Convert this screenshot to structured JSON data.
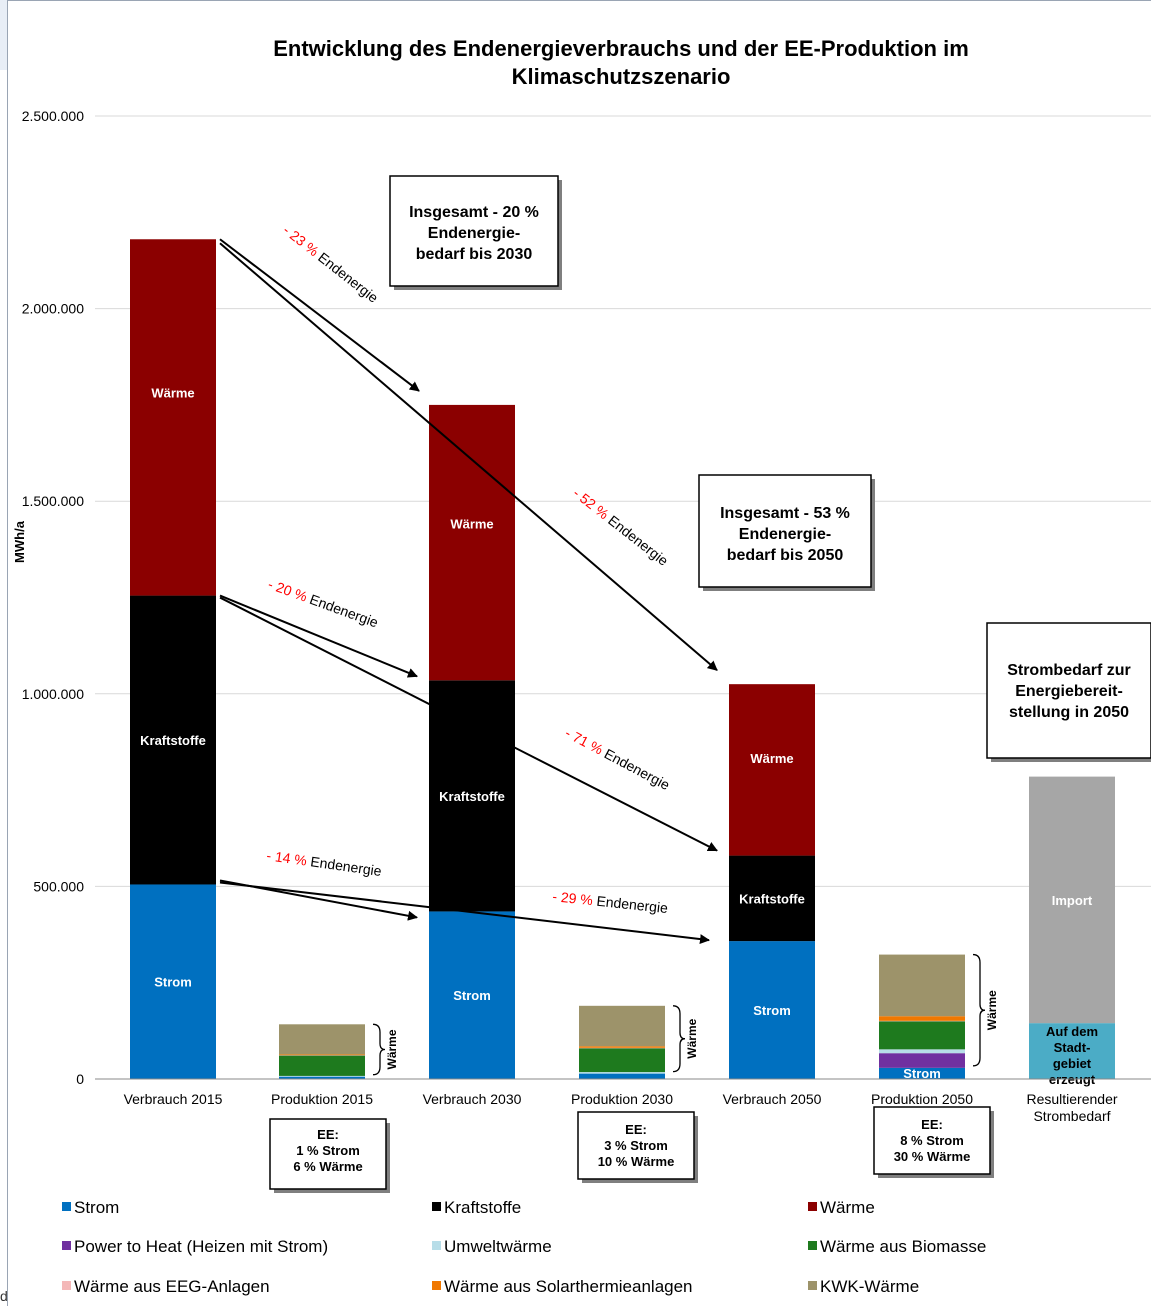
{
  "chart_data": {
    "type": "bar",
    "title": "Entwicklung des Endenergieverbrauchs und der EE-Produktion im Klimaschutzszenario",
    "title_lines": [
      "Entwicklung des Endenergieverbrauchs und der EE-Produktion im",
      "Klimaschutzszenario"
    ],
    "ylabel": "MWh/a",
    "xlabel": "",
    "ylim": [
      0,
      2500000
    ],
    "yticks": [
      0,
      500000,
      1000000,
      1500000,
      2000000,
      2500000
    ],
    "ytick_labels": [
      "0",
      "500.000",
      "1.000.000",
      "1.500.000",
      "2.000.000",
      "2.500.000"
    ],
    "grid": true,
    "stacked": true,
    "categories": [
      "Verbrauch 2015",
      "Produktion 2015",
      "Verbrauch 2030",
      "Produktion 2030",
      "Verbrauch 2050",
      "Produktion 2050",
      "Resultierender Strombedarf"
    ],
    "category_lines": [
      [
        "Verbrauch 2015"
      ],
      [
        "Produktion 2015"
      ],
      [
        "Verbrauch 2030"
      ],
      [
        "Produktion 2030"
      ],
      [
        "Verbrauch 2050"
      ],
      [
        "Produktion 2050"
      ],
      [
        "Resultierender",
        "Strombedarf"
      ]
    ],
    "series": [
      {
        "name": "Strom",
        "color": "#0070c0",
        "values": [
          505000,
          0,
          435000,
          0,
          358000,
          0,
          0
        ]
      },
      {
        "name": "Kraftstoffe",
        "color": "#000000",
        "values": [
          750000,
          0,
          600000,
          0,
          222000,
          0,
          0
        ]
      },
      {
        "name": "Wärme",
        "color": "#8b0000",
        "values": [
          925000,
          0,
          715000,
          0,
          445000,
          0,
          0
        ]
      },
      {
        "name": "Power to Heat (Heizen mit Strom)",
        "color": "#7030a0",
        "values": [
          0,
          0,
          0,
          0,
          0,
          38000,
          0
        ]
      },
      {
        "name": "Umweltwärme",
        "color": "#b7dde8",
        "values": [
          0,
          2000,
          0,
          4000,
          0,
          10000,
          0
        ]
      },
      {
        "name": "Wärme aus Biomasse",
        "color": "#1e7a1e",
        "values": [
          0,
          53000,
          0,
          62000,
          0,
          73000,
          0
        ]
      },
      {
        "name": "Wärme aus EEG-Anlagen",
        "color": "#f4b8b8",
        "values": [
          0,
          1000,
          0,
          1000,
          0,
          1000,
          0
        ]
      },
      {
        "name": "Wärme aus Solarthermieanlagen",
        "color": "#f07800",
        "values": [
          0,
          2000,
          0,
          4000,
          0,
          12000,
          0
        ]
      },
      {
        "name": "KWK-Wärme",
        "color": "#9d936a",
        "values": [
          0,
          78000,
          0,
          105000,
          0,
          160000,
          0
        ]
      },
      {
        "name": "Import",
        "color": "#a6a6a6",
        "values": [
          0,
          0,
          0,
          0,
          0,
          0,
          640000
        ]
      }
    ],
    "extra_segments": [
      {
        "category": "Produktion 2015",
        "name": "Strom",
        "color": "#0070c0",
        "value": 6000
      },
      {
        "category": "Produktion 2030",
        "name": "Strom",
        "color": "#0070c0",
        "value": 14000
      },
      {
        "category": "Produktion 2050",
        "name": "Strom",
        "color": "#0070c0",
        "value": 29000
      },
      {
        "category": "Resultierender Strombedarf",
        "name": "Auf dem Stadtgebiet erzeugt",
        "color": "#4bacc6",
        "value": 145000
      }
    ],
    "segment_labels": {
      "strom": "Strom",
      "kraftstoffe": "Kraftstoffe",
      "waerme": "Wärme",
      "import": "Import",
      "stadtgebiet": [
        "Auf dem",
        "Stadt-",
        "gebiet",
        "erzeugt"
      ]
    },
    "brace_label": "Wärme",
    "annotations": {
      "box_2030": [
        "Insgesamt - 20 %",
        "Endenergie-",
        "bedarf bis 2030"
      ],
      "box_2050": [
        "Insgesamt - 53 %",
        "Endenergie-",
        "bedarf bis 2050"
      ],
      "box_strom": [
        "Strombedarf zur",
        "Energiebereit-",
        "stellung in 2050"
      ],
      "ee_2015": [
        "EE:",
        "1 % Strom",
        "6 % Wärme"
      ],
      "ee_2030": [
        "EE:",
        "3 % Strom",
        "10 % Wärme"
      ],
      "ee_2050": [
        "EE:",
        "8 % Strom",
        "30 % Wärme"
      ],
      "arrows": [
        {
          "pct": "- 23 %",
          "text": " Endenergie"
        },
        {
          "pct": "- 52 %",
          "text": " Endenergie"
        },
        {
          "pct": "- 20 %",
          "text": " Endenergie"
        },
        {
          "pct": "- 71 %",
          "text": " Endenergie"
        },
        {
          "pct": "- 14 %",
          "text": " Endenergie"
        },
        {
          "pct": "- 29 %",
          "text": " Endenergie"
        }
      ]
    },
    "legend": {
      "placement": "bottom",
      "items": [
        {
          "label": "Strom",
          "color": "#0070c0"
        },
        {
          "label": "Kraftstoffe",
          "color": "#000000"
        },
        {
          "label": "Wärme",
          "color": "#8b0000"
        },
        {
          "label": "Power to Heat (Heizen mit Strom)",
          "color": "#7030a0"
        },
        {
          "label": "Umweltwärme",
          "color": "#b7dde8"
        },
        {
          "label": "Wärme aus Biomasse",
          "color": "#1e7a1e"
        },
        {
          "label": "Wärme aus EEG-Anlagen",
          "color": "#f4b8b8"
        },
        {
          "label": "Wärme aus Solarthermieanlagen",
          "color": "#f07800"
        },
        {
          "label": "KWK-Wärme",
          "color": "#9d936a"
        }
      ]
    }
  },
  "page": {
    "corner_char": "d"
  }
}
